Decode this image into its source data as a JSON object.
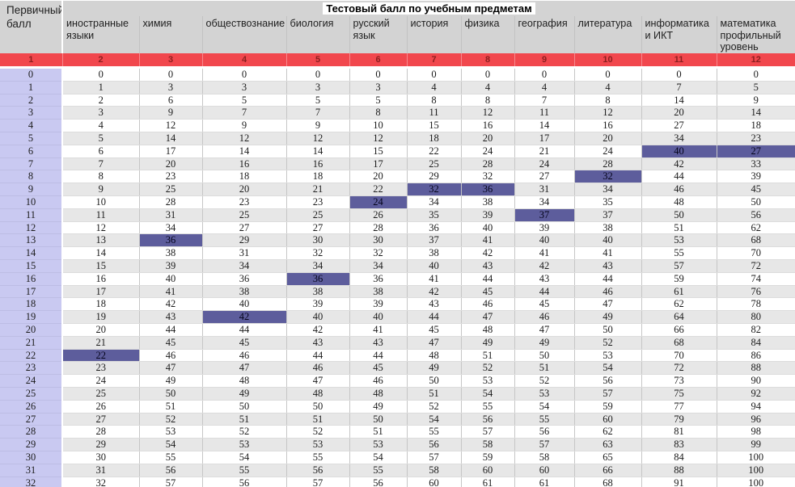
{
  "colors": {
    "header_bg": "#d3d3d3",
    "index_bg": "#f1474d",
    "index_text": "#8b1f1f",
    "primary_col_bg": "#c9c9f1",
    "stripe_bg": "#e7e7e7",
    "highlight_bg": "#5d5d9c"
  },
  "chart_data": {
    "type": "table",
    "title": "Тестовый балл по учебным предметам",
    "corner_label": "Первичный балл",
    "columns": [
      "иностранные языки",
      "химия",
      "обществознание",
      "биология",
      "русский язык",
      "история",
      "физика",
      "география",
      "литература",
      "информатика и ИКТ",
      "математика профильный уровень"
    ],
    "column_index_row": [
      1,
      2,
      3,
      4,
      5,
      6,
      7,
      8,
      9,
      10,
      11,
      12
    ],
    "rows": [
      [
        0,
        0,
        0,
        0,
        0,
        0,
        0,
        0,
        0,
        0,
        0,
        0
      ],
      [
        1,
        1,
        3,
        3,
        3,
        3,
        4,
        4,
        4,
        4,
        7,
        5
      ],
      [
        2,
        2,
        6,
        5,
        5,
        5,
        8,
        8,
        7,
        8,
        14,
        9
      ],
      [
        3,
        3,
        9,
        7,
        7,
        8,
        11,
        12,
        11,
        12,
        20,
        14
      ],
      [
        4,
        4,
        12,
        9,
        9,
        10,
        15,
        16,
        14,
        16,
        27,
        18
      ],
      [
        5,
        5,
        14,
        12,
        12,
        12,
        18,
        20,
        17,
        20,
        34,
        23
      ],
      [
        6,
        6,
        17,
        14,
        14,
        15,
        22,
        24,
        21,
        24,
        40,
        27
      ],
      [
        7,
        7,
        20,
        16,
        16,
        17,
        25,
        28,
        24,
        28,
        42,
        33
      ],
      [
        8,
        8,
        23,
        18,
        18,
        20,
        29,
        32,
        27,
        32,
        44,
        39
      ],
      [
        9,
        9,
        25,
        20,
        21,
        22,
        32,
        36,
        31,
        34,
        46,
        45
      ],
      [
        10,
        10,
        28,
        23,
        23,
        24,
        34,
        38,
        34,
        35,
        48,
        50
      ],
      [
        11,
        11,
        31,
        25,
        25,
        26,
        35,
        39,
        37,
        37,
        50,
        56
      ],
      [
        12,
        12,
        34,
        27,
        27,
        28,
        36,
        40,
        39,
        38,
        51,
        62
      ],
      [
        13,
        13,
        36,
        29,
        30,
        30,
        37,
        41,
        40,
        40,
        53,
        68
      ],
      [
        14,
        14,
        38,
        31,
        32,
        32,
        38,
        42,
        41,
        41,
        55,
        70
      ],
      [
        15,
        15,
        39,
        34,
        34,
        34,
        40,
        43,
        42,
        43,
        57,
        72
      ],
      [
        16,
        16,
        40,
        36,
        36,
        36,
        41,
        44,
        43,
        44,
        59,
        74
      ],
      [
        17,
        17,
        41,
        38,
        38,
        38,
        42,
        45,
        44,
        46,
        61,
        76
      ],
      [
        18,
        18,
        42,
        40,
        39,
        39,
        43,
        46,
        45,
        47,
        62,
        78
      ],
      [
        19,
        19,
        43,
        42,
        40,
        40,
        44,
        47,
        46,
        49,
        64,
        80
      ],
      [
        20,
        20,
        44,
        44,
        42,
        41,
        45,
        48,
        47,
        50,
        66,
        82
      ],
      [
        21,
        21,
        45,
        45,
        43,
        43,
        47,
        49,
        49,
        52,
        68,
        84
      ],
      [
        22,
        22,
        46,
        46,
        44,
        44,
        48,
        51,
        50,
        53,
        70,
        86
      ],
      [
        23,
        23,
        47,
        47,
        46,
        45,
        49,
        52,
        51,
        54,
        72,
        88
      ],
      [
        24,
        24,
        49,
        48,
        47,
        46,
        50,
        53,
        52,
        56,
        73,
        90
      ],
      [
        25,
        25,
        50,
        49,
        48,
        48,
        51,
        54,
        53,
        57,
        75,
        92
      ],
      [
        26,
        26,
        51,
        50,
        50,
        49,
        52,
        55,
        54,
        59,
        77,
        94
      ],
      [
        27,
        27,
        52,
        51,
        51,
        50,
        54,
        56,
        55,
        60,
        79,
        96
      ],
      [
        28,
        28,
        53,
        52,
        52,
        51,
        55,
        57,
        56,
        62,
        81,
        98
      ],
      [
        29,
        29,
        54,
        53,
        53,
        53,
        56,
        58,
        57,
        63,
        83,
        99
      ],
      [
        30,
        30,
        55,
        54,
        55,
        54,
        57,
        59,
        58,
        65,
        84,
        100
      ],
      [
        31,
        31,
        56,
        55,
        56,
        55,
        58,
        60,
        60,
        66,
        88,
        100
      ],
      [
        32,
        32,
        57,
        56,
        57,
        56,
        60,
        61,
        61,
        68,
        91,
        100
      ]
    ],
    "highlight_cells": [
      [
        6,
        10
      ],
      [
        6,
        11
      ],
      [
        8,
        9
      ],
      [
        9,
        6
      ],
      [
        9,
        7
      ],
      [
        10,
        5
      ],
      [
        11,
        8
      ],
      [
        13,
        2
      ],
      [
        16,
        4
      ],
      [
        19,
        3
      ],
      [
        22,
        1
      ]
    ]
  }
}
